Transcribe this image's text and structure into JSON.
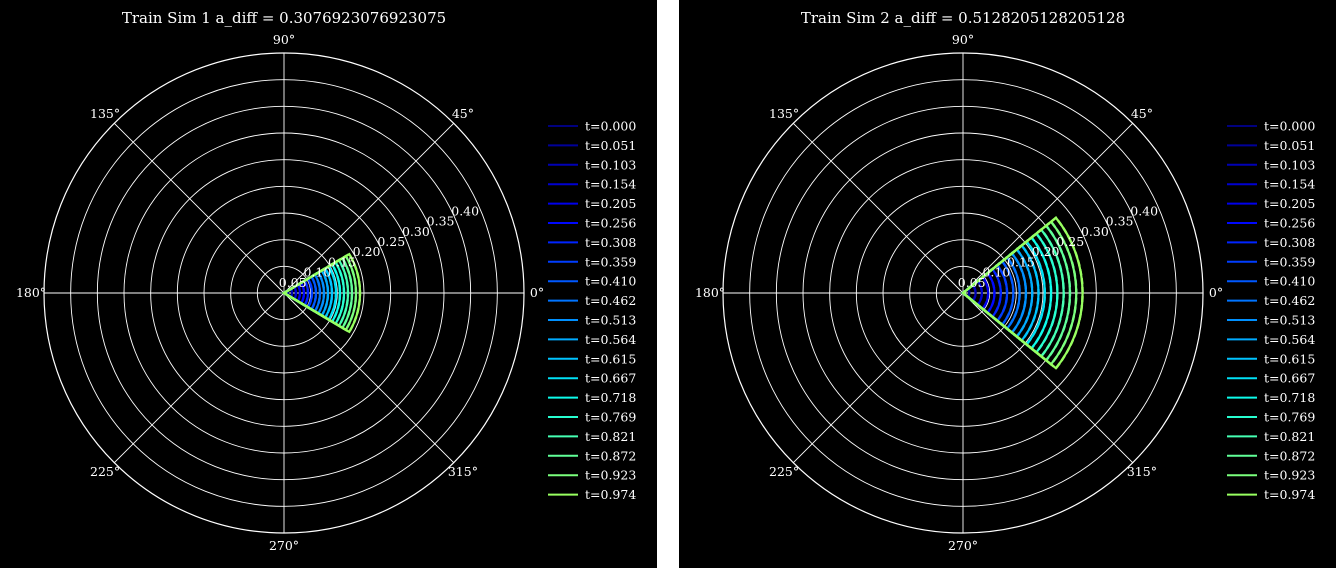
{
  "chart_data": [
    {
      "type": "line",
      "projection": "polar",
      "title": "Train Sim 1 a_diff = 0.3076923076923075",
      "theta_ticks": [
        "0°",
        "45°",
        "90°",
        "135°",
        "180°",
        "225°",
        "270°",
        "315°"
      ],
      "theta_tick_angles_deg": [
        0,
        45,
        90,
        135,
        180,
        225,
        270,
        315
      ],
      "r_ticks": [
        "0.05",
        "0.10",
        "0.15",
        "0.20",
        "0.25",
        "0.30",
        "0.35",
        "0.40"
      ],
      "r_tick_values": [
        0.05,
        0.1,
        0.15,
        0.2,
        0.25,
        0.3,
        0.35,
        0.4
      ],
      "r_tick_label_angle_deg": 22.5,
      "rlim": [
        0,
        0.45
      ],
      "grid": true,
      "legend_position": "right",
      "wedge_half_angle_deg": 30.8,
      "series_styles": [
        "solid",
        "dashed"
      ],
      "series": [
        {
          "name": "t=0.000",
          "color": "#00007f",
          "r": 0.0
        },
        {
          "name": "t=0.051",
          "color": "#00009a",
          "r": 0.0075
        },
        {
          "name": "t=0.103",
          "color": "#0000b5",
          "r": 0.015
        },
        {
          "name": "t=0.154",
          "color": "#0000d0",
          "r": 0.0225
        },
        {
          "name": "t=0.205",
          "color": "#0000eb",
          "r": 0.03
        },
        {
          "name": "t=0.256",
          "color": "#0008ff",
          "r": 0.0375
        },
        {
          "name": "t=0.308",
          "color": "#0024ff",
          "r": 0.045
        },
        {
          "name": "t=0.359",
          "color": "#003dff",
          "r": 0.0525
        },
        {
          "name": "t=0.410",
          "color": "#0058ff",
          "r": 0.06
        },
        {
          "name": "t=0.462",
          "color": "#0074ff",
          "r": 0.0675
        },
        {
          "name": "t=0.513",
          "color": "#0090ff",
          "r": 0.075
        },
        {
          "name": "t=0.564",
          "color": "#00abff",
          "r": 0.0825
        },
        {
          "name": "t=0.615",
          "color": "#00c4ff",
          "r": 0.09
        },
        {
          "name": "t=0.667",
          "color": "#00e0f5",
          "r": 0.0975
        },
        {
          "name": "t=0.718",
          "color": "#0dfbea",
          "r": 0.105
        },
        {
          "name": "t=0.769",
          "color": "#28fed0",
          "r": 0.1125
        },
        {
          "name": "t=0.821",
          "color": "#45ffb3",
          "r": 0.12
        },
        {
          "name": "t=0.872",
          "color": "#60ff98",
          "r": 0.1275
        },
        {
          "name": "t=0.923",
          "color": "#7bff7d",
          "r": 0.135
        },
        {
          "name": "t=0.974",
          "color": "#98ff60",
          "r": 0.1425
        }
      ]
    },
    {
      "type": "line",
      "projection": "polar",
      "title": "Train Sim 2 a_diff = 0.5128205128205128",
      "theta_ticks": [
        "0°",
        "45°",
        "90°",
        "135°",
        "180°",
        "225°",
        "270°",
        "315°"
      ],
      "theta_tick_angles_deg": [
        0,
        45,
        90,
        135,
        180,
        225,
        270,
        315
      ],
      "r_ticks": [
        "0.05",
        "0.10",
        "0.15",
        "0.20",
        "0.25",
        "0.30",
        "0.35",
        "0.40"
      ],
      "r_tick_values": [
        0.05,
        0.1,
        0.15,
        0.2,
        0.25,
        0.3,
        0.35,
        0.4
      ],
      "r_tick_label_angle_deg": 22.5,
      "rlim": [
        0,
        0.45
      ],
      "grid": true,
      "legend_position": "right",
      "wedge_half_angle_deg": 39,
      "series_styles": [
        "solid",
        "dashed"
      ],
      "series": [
        {
          "name": "t=0.000",
          "color": "#00007f",
          "r": 0.0
        },
        {
          "name": "t=0.051",
          "color": "#00009a",
          "r": 0.0118
        },
        {
          "name": "t=0.103",
          "color": "#0000b5",
          "r": 0.0236
        },
        {
          "name": "t=0.154",
          "color": "#0000d0",
          "r": 0.0354
        },
        {
          "name": "t=0.205",
          "color": "#0000eb",
          "r": 0.0472
        },
        {
          "name": "t=0.256",
          "color": "#0008ff",
          "r": 0.059
        },
        {
          "name": "t=0.308",
          "color": "#0024ff",
          "r": 0.0708
        },
        {
          "name": "t=0.359",
          "color": "#003dff",
          "r": 0.0826
        },
        {
          "name": "t=0.410",
          "color": "#0058ff",
          "r": 0.0944
        },
        {
          "name": "t=0.462",
          "color": "#0074ff",
          "r": 0.1062
        },
        {
          "name": "t=0.513",
          "color": "#0090ff",
          "r": 0.118
        },
        {
          "name": "t=0.564",
          "color": "#00abff",
          "r": 0.1298
        },
        {
          "name": "t=0.615",
          "color": "#00c4ff",
          "r": 0.1416
        },
        {
          "name": "t=0.667",
          "color": "#00e0f5",
          "r": 0.1534
        },
        {
          "name": "t=0.718",
          "color": "#0dfbea",
          "r": 0.1652
        },
        {
          "name": "t=0.769",
          "color": "#28fed0",
          "r": 0.177
        },
        {
          "name": "t=0.821",
          "color": "#45ffb3",
          "r": 0.1888
        },
        {
          "name": "t=0.872",
          "color": "#60ff98",
          "r": 0.2006
        },
        {
          "name": "t=0.923",
          "color": "#7bff7d",
          "r": 0.2124
        },
        {
          "name": "t=0.974",
          "color": "#98ff60",
          "r": 0.2242
        }
      ]
    }
  ]
}
